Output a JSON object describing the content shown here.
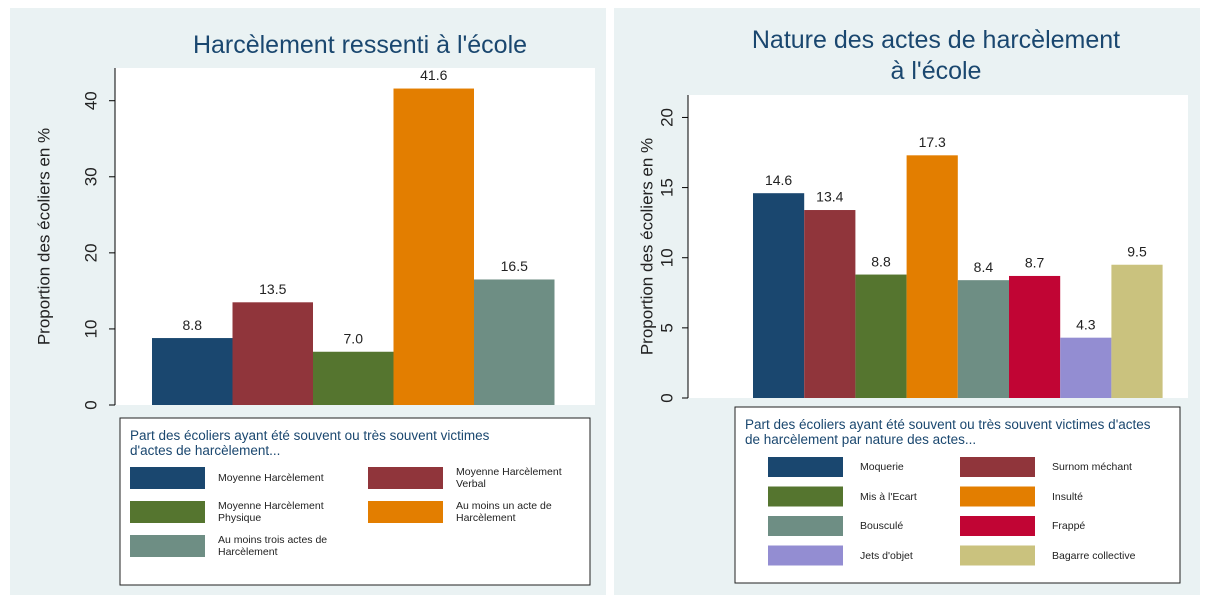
{
  "chart_data": [
    {
      "type": "bar",
      "title": "Harcèlement ressenti à l'école",
      "ylabel": "Proportion des écoliers en %",
      "legend_title": "Part des écoliers ayant été souvent ou très souvent victimes d'actes de harcèlement...",
      "categories": [
        "Moyenne Harcèlement",
        "Moyenne Harcèlement Verbal",
        "Moyenne Harcèlement Physique",
        "Au moins un acte de Harcèlement",
        "Au moins trois actes de Harcèlement"
      ],
      "values": [
        8.8,
        13.5,
        7.0,
        41.6,
        16.5
      ],
      "value_labels": [
        "8.8",
        "13.5",
        "7.0",
        "41.6",
        "16.5"
      ],
      "colors": [
        "#1a476f",
        "#90353b",
        "#55752f",
        "#e37e00",
        "#6e8e84"
      ],
      "ylim": [
        0,
        44.3
      ],
      "yticks": [
        0,
        10,
        20,
        30,
        40
      ]
    },
    {
      "type": "bar",
      "title": "Nature des actes de harcèlement à l'école",
      "ylabel": "Proportion des écoliers en %",
      "legend_title": "Part des écoliers ayant été souvent ou très souvent victimes d'actes de harcèlement par nature des actes...",
      "categories": [
        "Moquerie",
        "Surnom méchant",
        "Mis à l'Ecart",
        "Insulté",
        "Bousculé",
        "Frappé",
        "Jets d'objet",
        "Bagarre collective"
      ],
      "values": [
        14.6,
        13.4,
        8.8,
        17.3,
        8.4,
        8.7,
        4.3,
        9.5
      ],
      "value_labels": [
        "14.6",
        "13.4",
        "8.8",
        "17.3",
        "8.4",
        "8.7",
        "4.3",
        "9.5"
      ],
      "colors": [
        "#1a476f",
        "#90353b",
        "#55752f",
        "#e37e00",
        "#6e8e84",
        "#c10534",
        "#938dd2",
        "#cac27e"
      ],
      "ylim": [
        0,
        21.6
      ],
      "yticks": [
        0,
        5,
        10,
        15,
        20
      ]
    }
  ]
}
